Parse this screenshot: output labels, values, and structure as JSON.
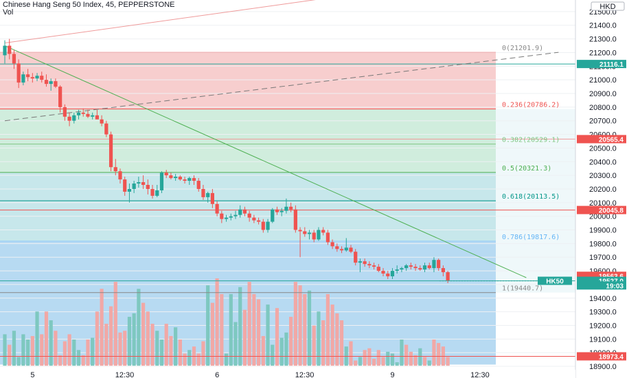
{
  "header": {
    "title": "Chinese Hang Seng 50 Index, 45, PEPPERSTONE",
    "vol_label": "Vol"
  },
  "currency_label": "HKD",
  "symbol_tag": "HK50",
  "colors": {
    "up": "#26a69a",
    "down": "#ef5350",
    "up_vol": "#7ec8c0",
    "down_vol": "#f1a8a6",
    "trendline": "#4caf50",
    "fib_zone_top": "#f6c6c6",
    "fib_zone_mid": "#c8ead7",
    "fib_zone_low": "#bde3e8",
    "fib_zone_bottom": "#aad4f0",
    "grid": "#eef0f3"
  },
  "chart_data": {
    "type": "candlestick",
    "title": "Chinese Hang Seng 50 Index, 45, PEPPERSTONE",
    "y_axis": {
      "ticks": [
        21500,
        21400,
        21300,
        21200,
        21100,
        21000,
        20900,
        20800,
        20700,
        20600,
        20500,
        20400,
        20300,
        20200,
        20100,
        20000,
        19900,
        19800,
        19700,
        19600,
        19500,
        19400,
        19300,
        19200,
        19100,
        19000,
        18900
      ],
      "tick_labels": [
        "21500.0",
        "21400.0",
        "21300.0",
        "21200.0",
        "21100.0",
        "21000.0",
        "20900.0",
        "20800.0",
        "20700.0",
        "20600.0",
        "20500.0",
        "20400.0",
        "20300.0",
        "20200.0",
        "20100.0",
        "20000.0",
        "19900.0",
        "19800.0",
        "19700.0",
        "19600.0",
        "19500.0",
        "19400.0",
        "19300.0",
        "19200.0",
        "19100.0",
        "19000.0",
        "18900.0"
      ],
      "ylim": [
        18875,
        21570
      ]
    },
    "x_axis": {
      "tick_labels": [
        "5",
        "12:30",
        "6",
        "12:30",
        "9",
        "12:30"
      ],
      "tick_bar_index": [
        6,
        26,
        46,
        65,
        84,
        103
      ]
    },
    "price_tags": [
      {
        "label": "21116.1",
        "value": 21116.1,
        "color": "#26a69a"
      },
      {
        "label": "20565.4",
        "value": 20565.4,
        "color": "#ef5350"
      },
      {
        "label": "20045.8",
        "value": 20045.8,
        "color": "#ef5350"
      },
      {
        "label": "19563.6",
        "value": 19563.6,
        "color": "#ef5350"
      },
      {
        "label": "19527.0",
        "value": 19527.0,
        "color": "#26a69a"
      },
      {
        "label": "19:03",
        "value": 19493,
        "color": "#26a69a"
      },
      {
        "label": "18973.4",
        "value": 18973.4,
        "color": "#ef5350"
      }
    ],
    "fib_levels": [
      {
        "label": "0(21201.9)",
        "value": 21201.9,
        "color": "#888888",
        "line": "#ef9a9a"
      },
      {
        "label": "0.236(20786.2)",
        "value": 20786.2,
        "color": "#ef5350",
        "line": "#ef5350"
      },
      {
        "label": "0.382(20529.1)",
        "value": 20529.1,
        "color": "#81c784",
        "line": "#81c784"
      },
      {
        "label": "0.5(20321.3)",
        "value": 20321.3,
        "color": "#4caf50",
        "line": "#4caf50"
      },
      {
        "label": "0.618(20113.5)",
        "value": 20113.5,
        "color": "#009688",
        "line": "#009688"
      },
      {
        "label": "0.786(19817.6)",
        "value": 19817.6,
        "color": "#64b5f6",
        "line": "#90caf9"
      },
      {
        "label": "1(19440.7)",
        "value": 19440.7,
        "color": "#888888",
        "line": "#888888"
      }
    ],
    "extra_lines": [
      {
        "value": 21116.1,
        "color": "#26a69a"
      },
      {
        "value": 20565.4,
        "color": "#ef9a9a"
      },
      {
        "value": 20045.8,
        "color": "#ef5350"
      },
      {
        "value": 19527.0,
        "color": "#26a69a"
      },
      {
        "value": 18973.4,
        "color": "#ef5350"
      }
    ],
    "trendlines": [
      {
        "from": [
          0,
          21250
        ],
        "to": [
          113,
          19550
        ],
        "color": "#4caf50",
        "style": "solid"
      },
      {
        "from": [
          0,
          20700
        ],
        "to": [
          120,
          21201.9
        ],
        "color": "#777777",
        "style": "dashed"
      },
      {
        "from": [
          0,
          21270
        ],
        "to": [
          70,
          21600
        ],
        "color": "#ef9a9a",
        "style": "solid"
      }
    ],
    "candles": [
      [
        21180,
        21290,
        21120,
        21250
      ],
      [
        21250,
        21300,
        21150,
        21190
      ],
      [
        21190,
        21220,
        21080,
        21120
      ],
      [
        21120,
        21150,
        20940,
        20980
      ],
      [
        20980,
        21060,
        20960,
        21040
      ],
      [
        21040,
        21080,
        20990,
        21020
      ],
      [
        21020,
        21050,
        20980,
        21010
      ],
      [
        21010,
        21050,
        20990,
        21030
      ],
      [
        21030,
        21060,
        20980,
        21000
      ],
      [
        21000,
        21040,
        20950,
        20970
      ],
      [
        20970,
        21010,
        20920,
        20990
      ],
      [
        20990,
        21010,
        20940,
        20950
      ],
      [
        20950,
        20960,
        20760,
        20800
      ],
      [
        20800,
        20820,
        20700,
        20730
      ],
      [
        20730,
        20760,
        20660,
        20700
      ],
      [
        20700,
        20760,
        20680,
        20740
      ],
      [
        20740,
        20780,
        20710,
        20760
      ],
      [
        20760,
        20790,
        20730,
        20750
      ],
      [
        20750,
        20780,
        20720,
        20730
      ],
      [
        20730,
        20760,
        20710,
        20740
      ],
      [
        20740,
        20780,
        20720,
        20710
      ],
      [
        20710,
        20740,
        20660,
        20680
      ],
      [
        20680,
        20700,
        20580,
        20600
      ],
      [
        20600,
        20620,
        20330,
        20360
      ],
      [
        20360,
        20420,
        20300,
        20330
      ],
      [
        20330,
        20350,
        20240,
        20270
      ],
      [
        20270,
        20290,
        20150,
        20180
      ],
      [
        20180,
        20240,
        20100,
        20200
      ],
      [
        20200,
        20260,
        20170,
        20240
      ],
      [
        20240,
        20290,
        20210,
        20250
      ],
      [
        20250,
        20300,
        20200,
        20230
      ],
      [
        20230,
        20270,
        20160,
        20200
      ],
      [
        20200,
        20230,
        20130,
        20150
      ],
      [
        20150,
        20230,
        20140,
        20190
      ],
      [
        20190,
        20330,
        20170,
        20320
      ],
      [
        20320,
        20340,
        20280,
        20300
      ],
      [
        20300,
        20320,
        20270,
        20280
      ],
      [
        20280,
        20310,
        20260,
        20290
      ],
      [
        20290,
        20300,
        20260,
        20270
      ],
      [
        20270,
        20290,
        20240,
        20260
      ],
      [
        20260,
        20290,
        20230,
        20280
      ],
      [
        20280,
        20300,
        20230,
        20260
      ],
      [
        20260,
        20280,
        20180,
        20200
      ],
      [
        20200,
        20230,
        20120,
        20140
      ],
      [
        20140,
        20180,
        20100,
        20170
      ],
      [
        20170,
        20200,
        20060,
        20090
      ],
      [
        20090,
        20110,
        20000,
        20020
      ],
      [
        20020,
        20040,
        19950,
        19980
      ],
      [
        19980,
        20010,
        19960,
        19990
      ],
      [
        19990,
        20020,
        19970,
        20000
      ],
      [
        20000,
        20040,
        19980,
        20010
      ],
      [
        20010,
        20080,
        19990,
        20050
      ],
      [
        20050,
        20070,
        20000,
        20020
      ],
      [
        20020,
        20040,
        19960,
        19990
      ],
      [
        19990,
        20010,
        19950,
        19970
      ],
      [
        19970,
        19990,
        19940,
        19960
      ],
      [
        19960,
        19980,
        19880,
        19900
      ],
      [
        19900,
        19980,
        19880,
        19960
      ],
      [
        19960,
        20060,
        19950,
        20050
      ],
      [
        20050,
        20070,
        20010,
        20030
      ],
      [
        20030,
        20060,
        20000,
        20040
      ],
      [
        20040,
        20130,
        20020,
        20070
      ],
      [
        20070,
        20100,
        20030,
        20050
      ],
      [
        20050,
        20080,
        19880,
        19900
      ],
      [
        19900,
        19920,
        19700,
        19890
      ],
      [
        19890,
        19920,
        19850,
        19870
      ],
      [
        19870,
        19900,
        19830,
        19880
      ],
      [
        19880,
        19900,
        19810,
        19830
      ],
      [
        19830,
        19920,
        19820,
        19900
      ],
      [
        19900,
        19920,
        19860,
        19880
      ],
      [
        19880,
        19900,
        19790,
        19810
      ],
      [
        19810,
        19830,
        19760,
        19780
      ],
      [
        19780,
        19800,
        19740,
        19760
      ],
      [
        19760,
        19780,
        19730,
        19750
      ],
      [
        19750,
        19840,
        19740,
        19770
      ],
      [
        19770,
        19790,
        19730,
        19740
      ],
      [
        19740,
        19760,
        19640,
        19660
      ],
      [
        19660,
        19690,
        19590,
        19670
      ],
      [
        19670,
        19690,
        19630,
        19650
      ],
      [
        19650,
        19670,
        19620,
        19640
      ],
      [
        19640,
        19660,
        19610,
        19630
      ],
      [
        19630,
        19650,
        19590,
        19600
      ],
      [
        19600,
        19620,
        19560,
        19580
      ],
      [
        19580,
        19600,
        19540,
        19560
      ],
      [
        19560,
        19620,
        19540,
        19600
      ],
      [
        19600,
        19640,
        19580,
        19610
      ],
      [
        19610,
        19630,
        19590,
        19620
      ],
      [
        19620,
        19650,
        19600,
        19640
      ],
      [
        19640,
        19660,
        19610,
        19630
      ],
      [
        19630,
        19650,
        19600,
        19620
      ],
      [
        19620,
        19640,
        19600,
        19610
      ],
      [
        19610,
        19660,
        19590,
        19640
      ],
      [
        19640,
        19660,
        19610,
        19620
      ],
      [
        19620,
        19700,
        19590,
        19680
      ],
      [
        19680,
        19690,
        19600,
        19620
      ],
      [
        19620,
        19640,
        19560,
        19590
      ],
      [
        19590,
        19600,
        19510,
        19530
      ]
    ],
    "volume": [
      36,
      24,
      40,
      10,
      36,
      30,
      34,
      62,
      36,
      62,
      52,
      40,
      12,
      28,
      36,
      30,
      18,
      12,
      30,
      32,
      62,
      88,
      48,
      68,
      96,
      38,
      40,
      56,
      60,
      88,
      72,
      62,
      48,
      40,
      30,
      48,
      34,
      44,
      30,
      14,
      18,
      22,
      14,
      28,
      92,
      72,
      100,
      82,
      14,
      82,
      50,
      90,
      64,
      96,
      82,
      76,
      34,
      70,
      24,
      66,
      32,
      38,
      56,
      96,
      92,
      82,
      86,
      46,
      62,
      52,
      82,
      70,
      60,
      52,
      22,
      28,
      6,
      10,
      18,
      20,
      8,
      18,
      10,
      16,
      14,
      4,
      30,
      24,
      16,
      12,
      20,
      10,
      6,
      30,
      26,
      22,
      10
    ],
    "volume_up": [
      1,
      0,
      1,
      1,
      1,
      1,
      0,
      1,
      0,
      0,
      1,
      0,
      0,
      0,
      0,
      1,
      1,
      0,
      0,
      1,
      0,
      0,
      0,
      0,
      0,
      0,
      0,
      1,
      1,
      1,
      0,
      0,
      0,
      1,
      1,
      0,
      0,
      1,
      0,
      0,
      1,
      0,
      0,
      0,
      1,
      0,
      0,
      0,
      1,
      1,
      1,
      1,
      0,
      0,
      0,
      0,
      0,
      1,
      1,
      0,
      1,
      1,
      0,
      0,
      0,
      0,
      1,
      0,
      1,
      0,
      0,
      0,
      0,
      0,
      1,
      0,
      0,
      1,
      0,
      0,
      0,
      0,
      0,
      1,
      1,
      1,
      1,
      0,
      0,
      0,
      1,
      0,
      1,
      0,
      0,
      0,
      0
    ]
  }
}
